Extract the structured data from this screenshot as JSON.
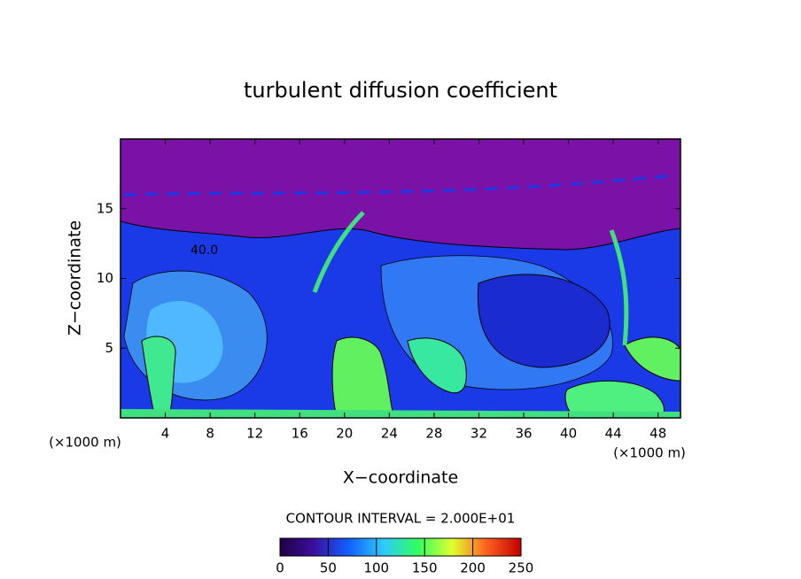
{
  "chart_data": {
    "type": "contour",
    "title": "turbulent diffusion coefficient",
    "x_label": "X−coordinate",
    "y_label": "Z−coordinate",
    "x_unit": "(×1000 m)",
    "y_unit": "(×1000 m)",
    "xlim": [
      0,
      50
    ],
    "xticks": [
      4,
      8,
      12,
      16,
      20,
      24,
      28,
      32,
      36,
      40,
      44,
      48
    ],
    "ylim": [
      0,
      20
    ],
    "yticks": [
      5,
      10,
      15
    ],
    "contour_label": "40.0",
    "contour_interval_label": "CONTOUR INTERVAL = 2.000E+01",
    "colorbar": {
      "lim": [
        0,
        250
      ],
      "ticks": [
        0,
        50,
        100,
        150,
        200,
        250
      ],
      "colors": [
        "#200040",
        "#3a10a0",
        "#1060ff",
        "#30c8ff",
        "#30ff60",
        "#e0ff30",
        "#ff6020",
        "#c00000"
      ]
    }
  }
}
